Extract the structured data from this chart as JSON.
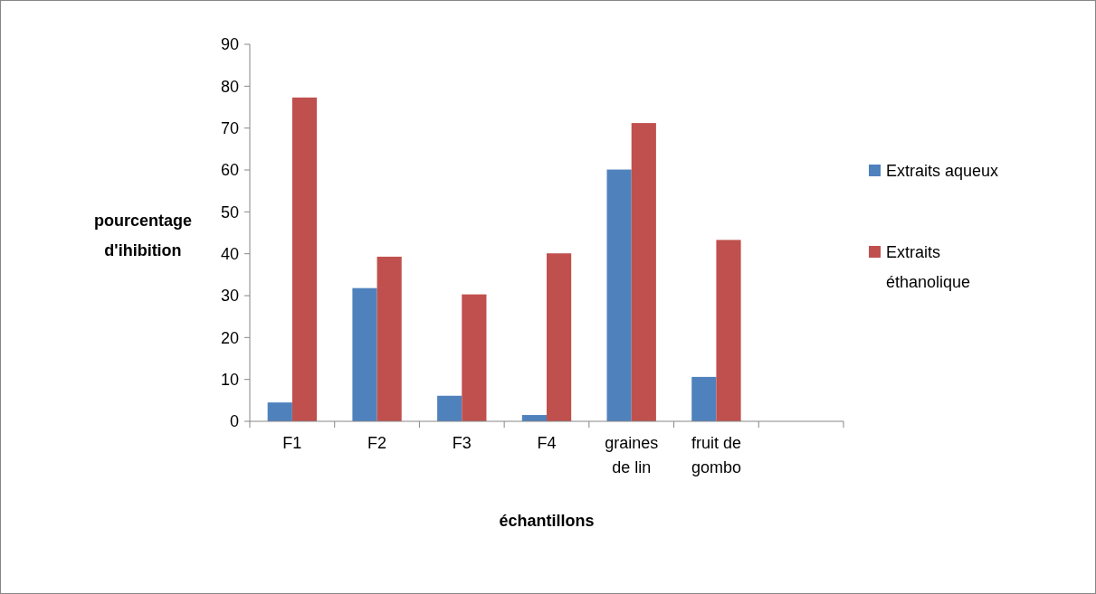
{
  "chart_data": {
    "type": "bar",
    "xlabel": "échantillons",
    "ylabel": "pourcentage d'ihibition",
    "categories": [
      "F1",
      "F2",
      "F3",
      "F4",
      "graines de lin",
      "fruit de gombo",
      null
    ],
    "series": [
      {
        "name": "Extraits aqueux",
        "color": "#4f81bd",
        "values": [
          4.5,
          31.8,
          6.1,
          1.5,
          60.1,
          10.6,
          null
        ]
      },
      {
        "name": "Extraits éthanolique",
        "color": "#c0504d",
        "values": [
          77.3,
          39.3,
          30.3,
          40.1,
          71.2,
          43.3,
          null
        ]
      }
    ],
    "ylim": [
      0,
      90
    ],
    "yticks": [
      0,
      10,
      20,
      30,
      40,
      50,
      60,
      70,
      80,
      90
    ],
    "grid": false,
    "legend": "right"
  }
}
